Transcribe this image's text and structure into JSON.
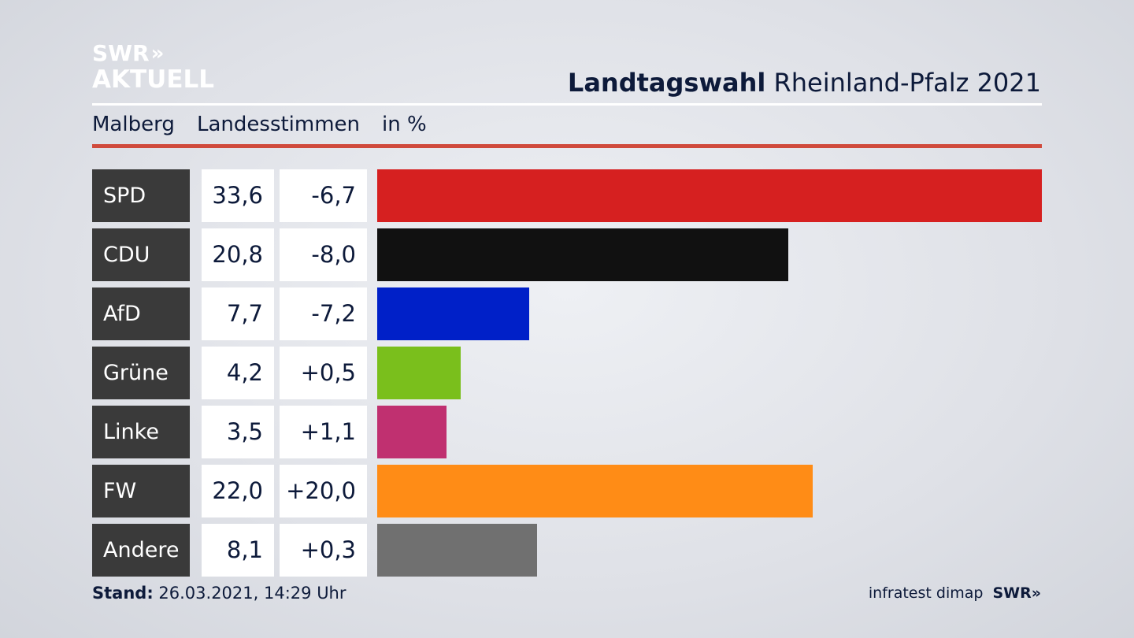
{
  "logo": {
    "line1": "SWR",
    "chevrons": "»",
    "line2": "AKTUELL"
  },
  "header": {
    "title_bold": "Landtagswahl",
    "title_rest": "Rheinland-Pfalz 2021"
  },
  "subheader": {
    "place": "Malberg",
    "measure": "Landesstimmen",
    "unit": "in %"
  },
  "footer": {
    "stand_label": "Stand:",
    "stand_value": "26.03.2021, 14:29 Uhr",
    "source": "infratest dimap",
    "brand": "SWR",
    "brand_chevrons": "»"
  },
  "chart_data": {
    "type": "bar",
    "orientation": "horizontal",
    "title": "Landtagswahl Rheinland-Pfalz 2021",
    "categories": [
      "SPD",
      "CDU",
      "AfD",
      "Grüne",
      "Linke",
      "FW",
      "Andere"
    ],
    "values": [
      33.6,
      20.8,
      7.7,
      4.2,
      3.5,
      22.0,
      8.1
    ],
    "value_labels": [
      "33,6",
      "20,8",
      "7,7",
      "4,2",
      "3,5",
      "22,0",
      "8,1"
    ],
    "differences": [
      -6.7,
      -8.0,
      -7.2,
      0.5,
      1.1,
      20.0,
      0.3
    ],
    "difference_labels": [
      "-6,7",
      "-8,0",
      "-7,2",
      "+0,5",
      "+1,1",
      "+20,0",
      "+0,3"
    ],
    "colors": [
      "#d62020",
      "#111111",
      "#0020c8",
      "#7abf1c",
      "#c03070",
      "#ff8c16",
      "#707070"
    ],
    "xlim": [
      0,
      33.6
    ]
  }
}
